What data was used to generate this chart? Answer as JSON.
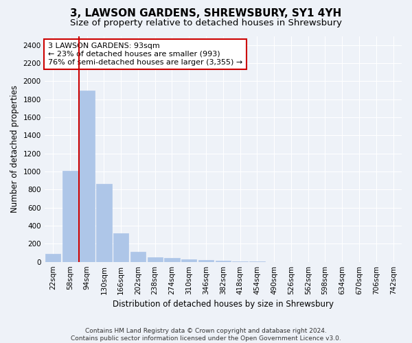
{
  "title": "3, LAWSON GARDENS, SHREWSBURY, SY1 4YH",
  "subtitle": "Size of property relative to detached houses in Shrewsbury",
  "xlabel": "Distribution of detached houses by size in Shrewsbury",
  "ylabel": "Number of detached properties",
  "bar_labels": [
    "22sqm",
    "58sqm",
    "94sqm",
    "130sqm",
    "166sqm",
    "202sqm",
    "238sqm",
    "274sqm",
    "310sqm",
    "346sqm",
    "382sqm",
    "418sqm",
    "454sqm",
    "490sqm",
    "526sqm",
    "562sqm",
    "598sqm",
    "634sqm",
    "670sqm",
    "706sqm",
    "742sqm"
  ],
  "bar_values": [
    85,
    1010,
    1900,
    860,
    315,
    115,
    50,
    40,
    30,
    20,
    15,
    5,
    2,
    1,
    0,
    0,
    0,
    0,
    0,
    0,
    0
  ],
  "bar_color": "#aec6e8",
  "bar_edge_color": "#aec6e8",
  "property_bar_index": 2,
  "red_line_color": "#cc0000",
  "annotation_text": "3 LAWSON GARDENS: 93sqm\n← 23% of detached houses are smaller (993)\n76% of semi-detached houses are larger (3,355) →",
  "annotation_box_color": "#ffffff",
  "annotation_box_edge_color": "#cc0000",
  "ylim": [
    0,
    2500
  ],
  "yticks": [
    0,
    200,
    400,
    600,
    800,
    1000,
    1200,
    1400,
    1600,
    1800,
    2000,
    2200,
    2400
  ],
  "footer_line1": "Contains HM Land Registry data © Crown copyright and database right 2024.",
  "footer_line2": "Contains public sector information licensed under the Open Government Licence v3.0.",
  "bg_color": "#eef2f8",
  "grid_color": "#ffffff",
  "title_fontsize": 11,
  "subtitle_fontsize": 9.5,
  "axis_label_fontsize": 8.5,
  "tick_fontsize": 7.5,
  "annotation_fontsize": 8,
  "footer_fontsize": 6.5
}
